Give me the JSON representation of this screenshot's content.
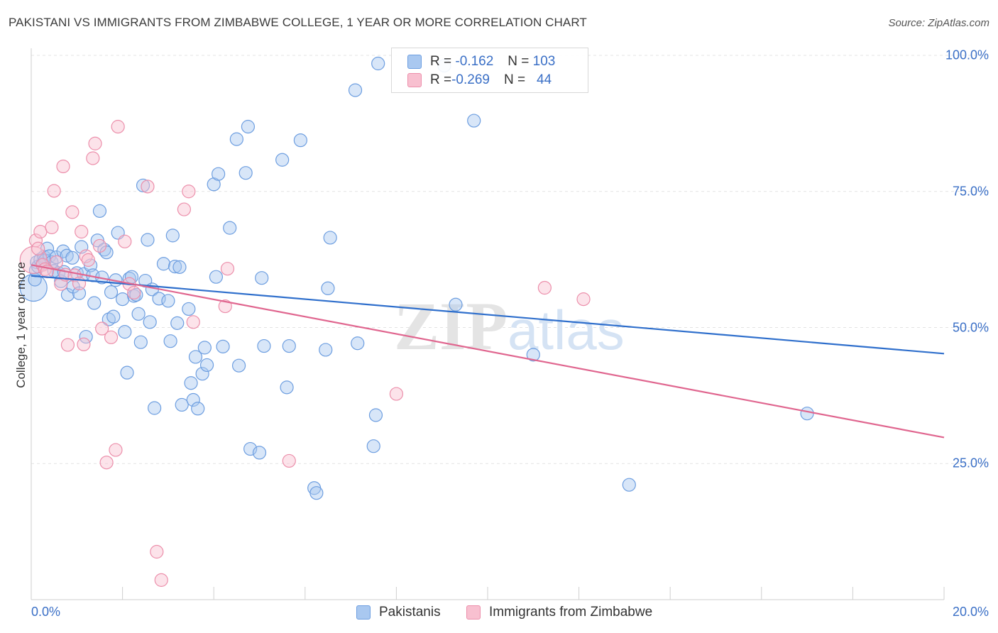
{
  "title": "PAKISTANI VS IMMIGRANTS FROM ZIMBABWE COLLEGE, 1 YEAR OR MORE CORRELATION CHART",
  "source": "Source: ZipAtlas.com",
  "watermark": {
    "zip": "ZIP",
    "atlas": "atlas"
  },
  "legend": {
    "rows": [
      {
        "r_label": "R = ",
        "r_value": "-0.162",
        "n_label": "N = ",
        "n_value": "103",
        "color": "#a9c8f0",
        "border": "#6d9ee0"
      },
      {
        "r_label": "R = ",
        "r_value": "-0.269",
        "n_label": "N = ",
        "n_value": "44",
        "color": "#f8c0d0",
        "border": "#ec8fab"
      }
    ]
  },
  "bottom_legend": [
    {
      "label": "Pakistanis",
      "color": "#a9c8f0",
      "border": "#6d9ee0"
    },
    {
      "label": "Immigrants from Zimbabwe",
      "color": "#f8c0d0",
      "border": "#ec8fab"
    }
  ],
  "chart_data": {
    "type": "scatter",
    "title": "PAKISTANI VS IMMIGRANTS FROM ZIMBABWE COLLEGE, 1 YEAR OR MORE CORRELATION CHART",
    "xlabel": "",
    "ylabel": "College, 1 year or more",
    "xlim": [
      0,
      20
    ],
    "ylim": [
      0,
      100
    ],
    "x_tick_labels": {
      "min": "0.0%",
      "max": "20.0%"
    },
    "y_ticks": [
      {
        "value": 100,
        "label": "100.0%"
      },
      {
        "value": 75,
        "label": "75.0%"
      },
      {
        "value": 50,
        "label": "50.0%"
      },
      {
        "value": 25,
        "label": "25.0%"
      }
    ],
    "grid": "horizontal dashed",
    "legend_position": "top-center",
    "series": [
      {
        "name": "Pakistanis",
        "color": "#6d9ee0",
        "fill": "#a9c8f0",
        "trend": {
          "x": [
            0,
            20
          ],
          "y": [
            59.5,
            45.2
          ]
        },
        "points": [
          {
            "x": 0.05,
            "y": 57.3,
            "big": true
          },
          {
            "x": 0.08,
            "y": 58.8
          },
          {
            "x": 0.1,
            "y": 60.5
          },
          {
            "x": 0.12,
            "y": 62.0
          },
          {
            "x": 0.15,
            "y": 61.2
          },
          {
            "x": 0.2,
            "y": 62.5
          },
          {
            "x": 0.25,
            "y": 61.7
          },
          {
            "x": 0.28,
            "y": 63.0
          },
          {
            "x": 0.3,
            "y": 62.3
          },
          {
            "x": 0.35,
            "y": 64.5
          },
          {
            "x": 0.4,
            "y": 63.1
          },
          {
            "x": 0.45,
            "y": 62.0
          },
          {
            "x": 0.5,
            "y": 60.4
          },
          {
            "x": 0.55,
            "y": 62.9
          },
          {
            "x": 0.6,
            "y": 60.0
          },
          {
            "x": 0.65,
            "y": 58.5
          },
          {
            "x": 0.7,
            "y": 64.0
          },
          {
            "x": 0.72,
            "y": 60.2
          },
          {
            "x": 0.78,
            "y": 63.2
          },
          {
            "x": 0.8,
            "y": 56.0
          },
          {
            "x": 0.9,
            "y": 62.8
          },
          {
            "x": 0.92,
            "y": 57.5
          },
          {
            "x": 1.0,
            "y": 60.0
          },
          {
            "x": 1.05,
            "y": 56.3
          },
          {
            "x": 1.1,
            "y": 64.8
          },
          {
            "x": 1.15,
            "y": 59.8
          },
          {
            "x": 1.2,
            "y": 48.3
          },
          {
            "x": 1.3,
            "y": 61.4
          },
          {
            "x": 1.35,
            "y": 59.6
          },
          {
            "x": 1.38,
            "y": 54.5
          },
          {
            "x": 1.45,
            "y": 66.0
          },
          {
            "x": 1.5,
            "y": 71.4
          },
          {
            "x": 1.55,
            "y": 59.2
          },
          {
            "x": 1.6,
            "y": 64.3
          },
          {
            "x": 1.65,
            "y": 63.8
          },
          {
            "x": 1.7,
            "y": 51.5
          },
          {
            "x": 1.75,
            "y": 56.5
          },
          {
            "x": 1.8,
            "y": 52.0
          },
          {
            "x": 1.85,
            "y": 58.7
          },
          {
            "x": 1.9,
            "y": 67.4
          },
          {
            "x": 2.0,
            "y": 55.2
          },
          {
            "x": 2.05,
            "y": 49.2
          },
          {
            "x": 2.1,
            "y": 41.7
          },
          {
            "x": 2.15,
            "y": 59.0
          },
          {
            "x": 2.2,
            "y": 59.3
          },
          {
            "x": 2.25,
            "y": 55.8
          },
          {
            "x": 2.3,
            "y": 56.0
          },
          {
            "x": 2.35,
            "y": 52.5
          },
          {
            "x": 2.4,
            "y": 47.3
          },
          {
            "x": 2.45,
            "y": 76.1
          },
          {
            "x": 2.5,
            "y": 58.6
          },
          {
            "x": 2.55,
            "y": 66.1
          },
          {
            "x": 2.6,
            "y": 51.0
          },
          {
            "x": 2.65,
            "y": 57.0
          },
          {
            "x": 2.7,
            "y": 35.2
          },
          {
            "x": 2.8,
            "y": 55.3
          },
          {
            "x": 2.9,
            "y": 61.7
          },
          {
            "x": 3.0,
            "y": 54.9
          },
          {
            "x": 3.05,
            "y": 47.5
          },
          {
            "x": 3.1,
            "y": 66.9
          },
          {
            "x": 3.15,
            "y": 61.2
          },
          {
            "x": 3.2,
            "y": 50.8
          },
          {
            "x": 3.25,
            "y": 61.1
          },
          {
            "x": 3.3,
            "y": 35.8
          },
          {
            "x": 3.45,
            "y": 53.4
          },
          {
            "x": 3.5,
            "y": 39.8
          },
          {
            "x": 3.55,
            "y": 36.7
          },
          {
            "x": 3.6,
            "y": 44.6
          },
          {
            "x": 3.65,
            "y": 35.1
          },
          {
            "x": 3.75,
            "y": 41.5
          },
          {
            "x": 3.8,
            "y": 46.3
          },
          {
            "x": 3.85,
            "y": 43.1
          },
          {
            "x": 4.0,
            "y": 76.3
          },
          {
            "x": 4.05,
            "y": 59.3
          },
          {
            "x": 4.1,
            "y": 78.2
          },
          {
            "x": 4.2,
            "y": 46.5
          },
          {
            "x": 4.35,
            "y": 68.3
          },
          {
            "x": 4.5,
            "y": 84.6
          },
          {
            "x": 4.55,
            "y": 43.0
          },
          {
            "x": 4.7,
            "y": 78.4
          },
          {
            "x": 4.75,
            "y": 86.9
          },
          {
            "x": 4.8,
            "y": 27.7
          },
          {
            "x": 5.0,
            "y": 27.0
          },
          {
            "x": 5.05,
            "y": 59.1
          },
          {
            "x": 5.1,
            "y": 46.6
          },
          {
            "x": 5.5,
            "y": 80.8
          },
          {
            "x": 5.6,
            "y": 39.0
          },
          {
            "x": 5.65,
            "y": 46.6
          },
          {
            "x": 5.9,
            "y": 84.4
          },
          {
            "x": 6.2,
            "y": 20.5
          },
          {
            "x": 6.25,
            "y": 19.6
          },
          {
            "x": 6.45,
            "y": 45.9
          },
          {
            "x": 6.5,
            "y": 57.2
          },
          {
            "x": 6.55,
            "y": 66.5
          },
          {
            "x": 7.1,
            "y": 93.6
          },
          {
            "x": 7.15,
            "y": 47.1
          },
          {
            "x": 7.5,
            "y": 28.2
          },
          {
            "x": 7.55,
            "y": 33.9
          },
          {
            "x": 7.6,
            "y": 98.5
          },
          {
            "x": 9.3,
            "y": 54.2
          },
          {
            "x": 9.05,
            "y": 98.1
          },
          {
            "x": 9.7,
            "y": 88.0
          },
          {
            "x": 11.0,
            "y": 45.0
          },
          {
            "x": 13.1,
            "y": 21.1
          },
          {
            "x": 17.0,
            "y": 34.2
          }
        ]
      },
      {
        "name": "Immigrants from Zimbabwe",
        "color": "#ec8fab",
        "fill": "#f8c0d0",
        "trend": {
          "x": [
            0,
            20
          ],
          "y": [
            61.5,
            29.8
          ]
        },
        "points": [
          {
            "x": 0.05,
            "y": 62.4,
            "big": true
          },
          {
            "x": 0.1,
            "y": 66.0
          },
          {
            "x": 0.15,
            "y": 64.5
          },
          {
            "x": 0.2,
            "y": 67.6
          },
          {
            "x": 0.25,
            "y": 61.5
          },
          {
            "x": 0.3,
            "y": 60.7
          },
          {
            "x": 0.35,
            "y": 60.3
          },
          {
            "x": 0.45,
            "y": 68.4
          },
          {
            "x": 0.5,
            "y": 75.1
          },
          {
            "x": 0.55,
            "y": 62.0
          },
          {
            "x": 0.65,
            "y": 58.0
          },
          {
            "x": 0.7,
            "y": 79.6
          },
          {
            "x": 0.75,
            "y": 59.7
          },
          {
            "x": 0.8,
            "y": 46.8
          },
          {
            "x": 0.9,
            "y": 71.2
          },
          {
            "x": 0.95,
            "y": 59.6
          },
          {
            "x": 1.05,
            "y": 58.1
          },
          {
            "x": 1.1,
            "y": 67.6
          },
          {
            "x": 1.15,
            "y": 46.9
          },
          {
            "x": 1.2,
            "y": 63.1
          },
          {
            "x": 1.25,
            "y": 62.4
          },
          {
            "x": 1.35,
            "y": 81.1
          },
          {
            "x": 1.4,
            "y": 83.8
          },
          {
            "x": 1.5,
            "y": 65.0
          },
          {
            "x": 1.55,
            "y": 49.8
          },
          {
            "x": 1.65,
            "y": 25.2
          },
          {
            "x": 1.75,
            "y": 48.2
          },
          {
            "x": 1.85,
            "y": 27.5
          },
          {
            "x": 1.9,
            "y": 86.9
          },
          {
            "x": 2.05,
            "y": 65.8
          },
          {
            "x": 2.15,
            "y": 58.0
          },
          {
            "x": 2.25,
            "y": 56.4
          },
          {
            "x": 2.55,
            "y": 75.9
          },
          {
            "x": 2.75,
            "y": 8.8
          },
          {
            "x": 2.85,
            "y": 3.6
          },
          {
            "x": 3.35,
            "y": 71.7
          },
          {
            "x": 3.45,
            "y": 75.0
          },
          {
            "x": 3.55,
            "y": 51.0
          },
          {
            "x": 4.25,
            "y": 53.9
          },
          {
            "x": 4.3,
            "y": 60.8
          },
          {
            "x": 5.65,
            "y": 25.5
          },
          {
            "x": 8.0,
            "y": 37.8
          },
          {
            "x": 11.25,
            "y": 57.3
          },
          {
            "x": 12.1,
            "y": 55.2
          }
        ]
      }
    ]
  }
}
